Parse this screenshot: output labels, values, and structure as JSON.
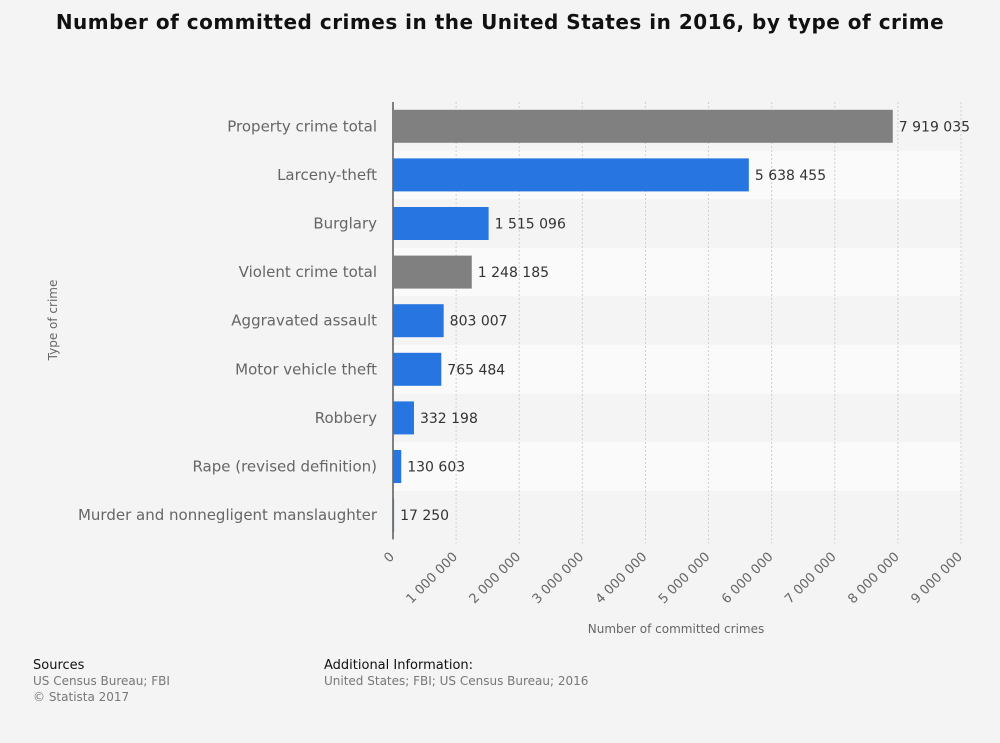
{
  "chart_data": {
    "type": "bar",
    "orientation": "horizontal",
    "title": "Number of committed crimes in the United States in 2016, by type of crime",
    "xlabel": "Number of committed crimes",
    "ylabel": "Type of crime",
    "xlim": [
      0,
      9000000
    ],
    "xticks": [
      0,
      1000000,
      2000000,
      3000000,
      4000000,
      5000000,
      6000000,
      7000000,
      8000000,
      9000000
    ],
    "xtick_labels": [
      "0",
      "1 000 000",
      "2 000 000",
      "3 000 000",
      "4 000 000",
      "5 000 000",
      "6 000 000",
      "7 000 000",
      "8 000 000",
      "9 000 000"
    ],
    "grid": true,
    "categories": [
      "Property crime total",
      "Larceny-theft",
      "Burglary",
      "Violent crime total",
      "Aggravated assault",
      "Motor vehicle theft",
      "Robbery",
      "Rape (revised definition)",
      "Murder and nonnegligent manslaughter"
    ],
    "values": [
      7919035,
      5638455,
      1515096,
      1248185,
      803007,
      765484,
      332198,
      130603,
      17250
    ],
    "value_labels": [
      "7 919 035",
      "5 638 455",
      "1 515 096",
      "1 248 185",
      "803 007",
      "765 484",
      "332 198",
      "130 603",
      "17 250"
    ],
    "bar_colors": [
      "#808080",
      "#2675e0",
      "#2675e0",
      "#808080",
      "#2675e0",
      "#2675e0",
      "#2675e0",
      "#2675e0",
      "#2675e0"
    ]
  },
  "footer": {
    "sources_heading": "Sources",
    "sources_line1": "US Census Bureau; FBI",
    "sources_line2": "© Statista 2017",
    "additional_heading": "Additional Information:",
    "additional_line1": "United States; FBI; US Census Bureau; 2016"
  }
}
